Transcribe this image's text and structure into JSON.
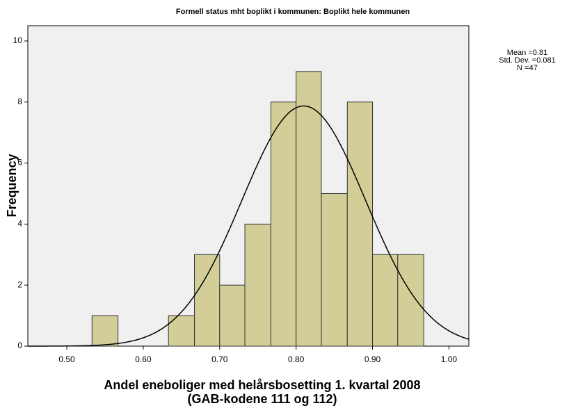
{
  "chart_data": {
    "type": "histogram",
    "title": "Formell status mht boplikt i kommunen: Boplikt hele kommunen",
    "xlabel": [
      "Andel eneboliger med helårsbosetting 1. kvartal 2008",
      "(GAB-kodene 111 og 112)"
    ],
    "ylabel": "Frequency",
    "bins": [
      0.533,
      0.567,
      0.6,
      0.633,
      0.667,
      0.7,
      0.733,
      0.767,
      0.8,
      0.833,
      0.867,
      0.9,
      0.933,
      0.967
    ],
    "values": [
      1,
      0,
      0,
      1,
      3,
      2,
      4,
      8,
      9,
      5,
      8,
      3,
      3
    ],
    "color": "#d3ce97",
    "edge_color": "#333333",
    "curve_color": "#000000",
    "plot_background": "#f0f0f0",
    "xlim": [
      0.449,
      1.026
    ],
    "ylim": [
      0,
      10.5
    ],
    "xticks": [
      {
        "value": 0.5,
        "label": "0.50"
      },
      {
        "value": 0.6,
        "label": "0.60"
      },
      {
        "value": 0.7,
        "label": "0.70"
      },
      {
        "value": 0.8,
        "label": "0.80"
      },
      {
        "value": 0.9,
        "label": "0.90"
      },
      {
        "value": 1.0,
        "label": "1.00"
      }
    ],
    "yticks": [
      0,
      2,
      4,
      6,
      8,
      10
    ],
    "stats": [
      {
        "label": "Mean =",
        "value": 0.81
      },
      {
        "label": "Std. Dev. =",
        "value": 0.081
      },
      {
        "label": "N =",
        "value": 47
      }
    ]
  }
}
